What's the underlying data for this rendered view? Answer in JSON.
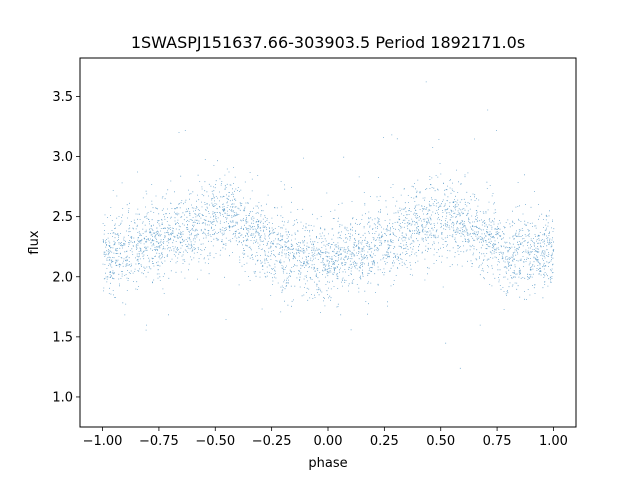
{
  "chart_data": {
    "type": "scatter",
    "title": "1SWASPJ151637.66-303903.5 Period 1892171.0s",
    "xlabel": "phase",
    "ylabel": "flux",
    "xlim": [
      -1.1,
      1.1
    ],
    "ylim": [
      0.75,
      3.82
    ],
    "xticks": [
      -1.0,
      -0.75,
      -0.5,
      -0.25,
      0.0,
      0.25,
      0.5,
      0.75,
      1.0
    ],
    "xtick_labels": [
      "−1.00",
      "−0.75",
      "−0.50",
      "−0.25",
      "0.00",
      "0.25",
      "0.50",
      "0.75",
      "1.00"
    ],
    "yticks": [
      1.0,
      1.5,
      2.0,
      2.5,
      3.0,
      3.5
    ],
    "ytick_labels": [
      "1.0",
      "1.5",
      "2.0",
      "2.5",
      "3.0",
      "3.5"
    ],
    "grid": false,
    "marker_color": "#1f77b4",
    "series": [
      {
        "phase_range": [
          -1.0,
          1.0
        ],
        "approx_points": 30000,
        "median_flux_profile": {
          "phase": [
            -1.0,
            -0.9,
            -0.8,
            -0.7,
            -0.6,
            -0.5,
            -0.45,
            -0.4,
            -0.3,
            -0.2,
            -0.1,
            0.0,
            0.1,
            0.2,
            0.3,
            0.4,
            0.5,
            0.55,
            0.6,
            0.7,
            0.8,
            0.9,
            1.0
          ],
          "flux": [
            2.2,
            2.2,
            2.28,
            2.35,
            2.42,
            2.5,
            2.52,
            2.45,
            2.32,
            2.2,
            2.15,
            2.15,
            2.18,
            2.25,
            2.32,
            2.42,
            2.5,
            2.52,
            2.45,
            2.32,
            2.2,
            2.18,
            2.2
          ]
        },
        "flux_min": 0.9,
        "flux_max": 3.65
      }
    ]
  }
}
